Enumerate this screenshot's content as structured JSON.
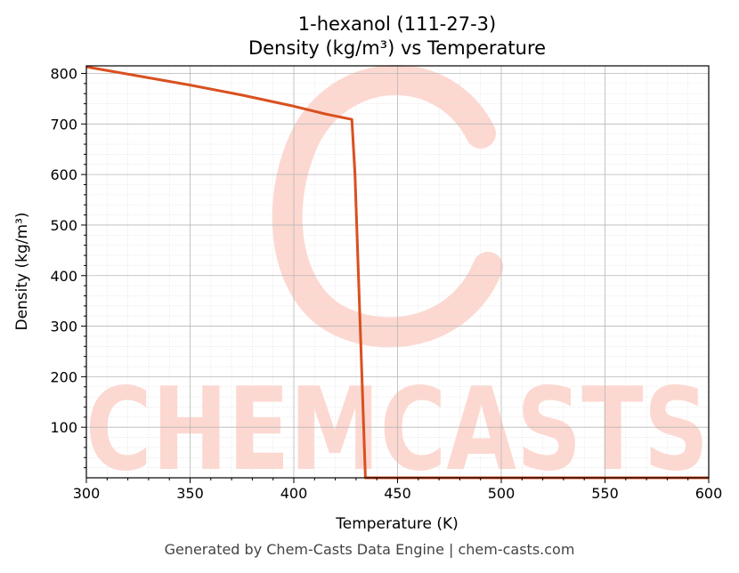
{
  "chart_data": {
    "type": "line",
    "title_line1": "1-hexanol (111-27-3)",
    "title_line2": "Density (kg/m³) vs Temperature",
    "xlabel": "Temperature (K)",
    "ylabel": "Density (kg/m³)",
    "xlim": [
      300,
      600
    ],
    "ylim": [
      0,
      815
    ],
    "xticks": [
      300,
      350,
      400,
      450,
      500,
      550,
      600
    ],
    "yticks": [
      100,
      200,
      300,
      400,
      500,
      600,
      700,
      800
    ],
    "grid": true,
    "line_color": "#d95020",
    "series": [
      {
        "x": [
          300,
          325,
          350,
          375,
          400,
          415,
          428,
          429.5,
          434.5,
          450,
          500,
          550,
          600
        ],
        "values": [
          813,
          795,
          777,
          757,
          735,
          720,
          709,
          600,
          0,
          0,
          0,
          0,
          0
        ]
      }
    ]
  },
  "watermark": {
    "text": "CHEMCASTS",
    "color": "#fdd8d0"
  },
  "footer": "Generated by Chem-Casts Data Engine | chem-casts.com"
}
